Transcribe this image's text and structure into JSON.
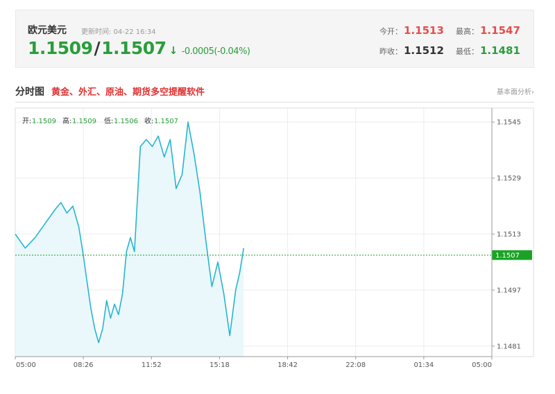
{
  "quote": {
    "pair": "欧元美元",
    "update_label": "更新时间: 04-22 16:34",
    "bid": "1.1509",
    "separator": "/",
    "ask": "1.1507",
    "arrow": "↓",
    "change": "-0.0005(-0.04%)",
    "open_label": "今开：",
    "open": "1.1513",
    "high_label": "最高：",
    "high": "1.1547",
    "prev_close_label": "昨收：",
    "prev_close": "1.1512",
    "low_label": "最低：",
    "low": "1.1481"
  },
  "section": {
    "title": "分时图",
    "ad": "黄金、外汇、原油、期货多空提醒软件",
    "link": "基本面分析›"
  },
  "colors": {
    "up": "#e84b4b",
    "down": "#2a9d3c",
    "line": "#26b6cc",
    "fill": "#eaf7fb",
    "current_tag": "#1aa326"
  },
  "chart_data": {
    "type": "area",
    "ohlc": {
      "open_label": "开:",
      "open": "1.1509",
      "high_label": "高:",
      "high": "1.1509",
      "low_label": "低:",
      "low": "1.1506",
      "close_label": "收:",
      "close": "1.1507"
    },
    "x_tick_labels": [
      "05:00",
      "08:26",
      "11:52",
      "15:18",
      "18:42",
      "22:08",
      "01:34",
      "05:00"
    ],
    "y_tick_labels": [
      "1.1545",
      "1.1529",
      "1.1513",
      "1.1497",
      "1.1481"
    ],
    "y_ticks": [
      1.1545,
      1.1529,
      1.1513,
      1.1497,
      1.1481
    ],
    "ylim": [
      1.1478,
      1.1549
    ],
    "x_domain_hours": [
      0,
      24
    ],
    "current_value": 1.1507,
    "current_label": "1.1507",
    "series": [
      {
        "x": [
          0,
          0.5,
          1,
          1.5,
          2,
          2.3,
          2.6,
          2.9,
          3.2,
          3.4,
          3.6,
          3.8,
          4.0,
          4.2,
          4.4,
          4.6,
          4.8,
          5.0,
          5.2,
          5.4,
          5.6,
          5.8,
          6.0,
          6.3,
          6.6,
          6.9,
          7.2,
          7.5,
          7.8,
          8.1,
          8.4,
          8.7,
          9.0,
          9.3,
          9.6,
          9.9,
          10.2,
          10.5,
          10.8,
          11.1,
          11.3,
          11.5
        ],
        "y": [
          1.1513,
          1.1509,
          1.1512,
          1.1516,
          1.152,
          1.1522,
          1.1519,
          1.1521,
          1.1515,
          1.1508,
          1.15,
          1.1492,
          1.1486,
          1.1482,
          1.1486,
          1.1494,
          1.1489,
          1.1493,
          1.149,
          1.1496,
          1.1508,
          1.1512,
          1.1508,
          1.1538,
          1.154,
          1.1538,
          1.1541,
          1.1535,
          1.154,
          1.1526,
          1.153,
          1.1545,
          1.1536,
          1.1525,
          1.1511,
          1.1498,
          1.1505,
          1.1496,
          1.1484,
          1.1497,
          1.1502,
          1.1509
        ]
      }
    ]
  }
}
